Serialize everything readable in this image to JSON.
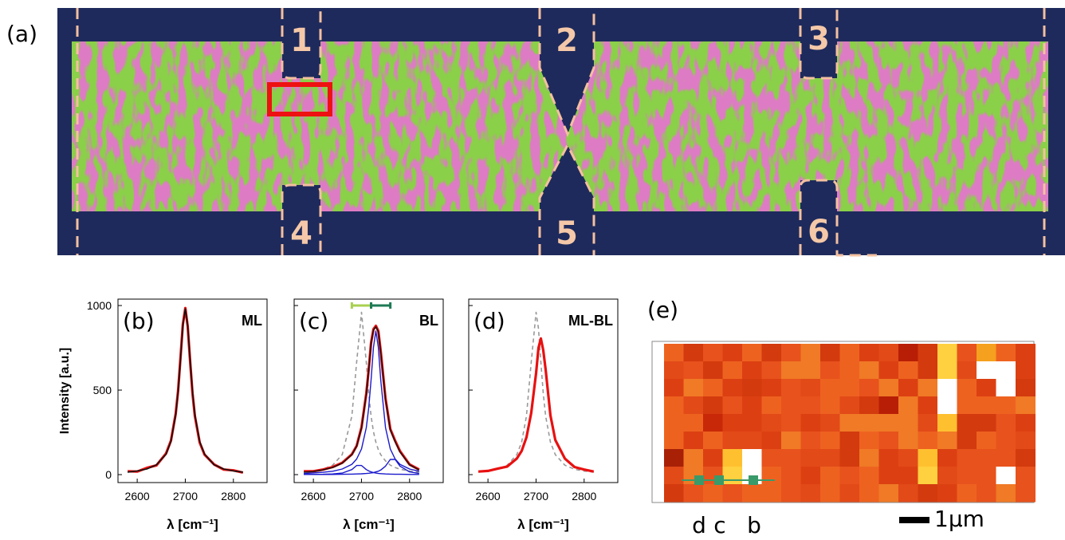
{
  "panels": {
    "a": {
      "label": "(a)",
      "markers": [
        "1",
        "2",
        "3",
        "4",
        "5",
        "6"
      ]
    },
    "e": {
      "label": "(e)",
      "points": [
        "d",
        "c",
        "b"
      ],
      "scale_bar": "1μm"
    }
  },
  "chart_data": [
    {
      "type": "line",
      "label": "(b)",
      "tag": "ML",
      "ylabel": "Intensity [a.u.]",
      "xlabel": "λ [cm⁻¹]",
      "xlim": [
        2560,
        2870
      ],
      "ylim": [
        -47,
        1038
      ],
      "xticks": [
        2600,
        2700,
        2800
      ],
      "yticks": [
        0,
        500,
        1000
      ],
      "x": [
        2580,
        2600,
        2620,
        2640,
        2660,
        2670,
        2680,
        2685,
        2690,
        2695,
        2700,
        2705,
        2710,
        2715,
        2720,
        2730,
        2740,
        2760,
        2780,
        2800,
        2820
      ],
      "series": [
        {
          "color": "#e81010",
          "width": 3.2,
          "values": [
            20,
            18,
            40,
            55,
            125,
            200,
            360,
            495,
            690,
            890,
            985,
            875,
            670,
            480,
            345,
            190,
            118,
            60,
            30,
            25,
            12
          ]
        },
        {
          "color": "#111111",
          "width": 1.6,
          "values": [
            15,
            22,
            33,
            58,
            121,
            196,
            353,
            490,
            679,
            882,
            980,
            882,
            679,
            490,
            353,
            196,
            121,
            58,
            33,
            22,
            15
          ]
        }
      ]
    },
    {
      "type": "line",
      "label": "(c)",
      "tag": "BL",
      "xlabel": "λ [cm⁻¹]",
      "xlim": [
        2560,
        2870
      ],
      "ylim": [
        -47,
        1038
      ],
      "xticks": [
        2600,
        2700,
        2800
      ],
      "yticks": [
        0,
        500,
        1000
      ],
      "x": [
        2580,
        2600,
        2620,
        2640,
        2660,
        2680,
        2690,
        2700,
        2710,
        2715,
        2720,
        2725,
        2730,
        2735,
        2740,
        2750,
        2760,
        2770,
        2780,
        2800,
        2820
      ],
      "series": [
        {
          "color": "#999999",
          "width": 1.6,
          "dashed": true,
          "values": [
            15,
            21,
            32,
            56,
            118,
            346,
            665,
            960,
            665,
            480,
            346,
            254,
            192,
            148,
            118,
            81,
            56,
            42,
            32,
            21,
            15
          ]
        },
        {
          "color": "#e81010",
          "width": 3.2,
          "values": [
            20,
            20,
            30,
            45,
            70,
            120,
            170,
            280,
            480,
            620,
            780,
            860,
            880,
            850,
            730,
            450,
            270,
            200,
            140,
            60,
            30
          ]
        },
        {
          "color": "#1a1acc",
          "width": 1.4,
          "values": [
            7,
            10,
            14,
            20,
            33,
            61,
            92,
            152,
            278,
            393,
            560,
            753,
            850,
            753,
            560,
            278,
            152,
            92,
            61,
            33,
            20
          ]
        },
        {
          "color": "#1a1acc",
          "width": 1.4,
          "values": [
            1,
            1.5,
            2,
            4,
            9,
            30,
            54,
            54,
            30,
            22,
            16,
            12,
            9,
            7,
            6,
            4,
            3,
            2,
            2,
            1,
            1
          ]
        },
        {
          "color": "#1a1acc",
          "width": 1.4,
          "values": [
            1,
            1,
            1,
            1,
            2,
            3,
            4,
            5,
            7,
            8,
            10,
            12,
            16,
            20,
            27,
            50,
            90,
            90,
            50,
            16,
            7
          ]
        },
        {
          "color": "#111111",
          "width": 1.4,
          "values": [
            15,
            18,
            28,
            42,
            68,
            118,
            168,
            275,
            475,
            615,
            775,
            855,
            875,
            845,
            725,
            445,
            265,
            195,
            135,
            58,
            28
          ]
        }
      ],
      "intervals": [
        {
          "x": 2700,
          "error": 20,
          "y": 1000,
          "color": "#a8d050"
        },
        {
          "x": 2740,
          "error": 20,
          "y": 1000,
          "color": "#1e7a55"
        }
      ]
    },
    {
      "type": "line",
      "label": "(d)",
      "tag": "ML-BL",
      "xlabel": "λ [cm⁻¹]",
      "xlim": [
        2560,
        2870
      ],
      "ylim": [
        -47,
        1038
      ],
      "xticks": [
        2600,
        2700,
        2800
      ],
      "yticks": [
        0,
        500,
        1000
      ],
      "x": [
        2580,
        2600,
        2620,
        2640,
        2660,
        2670,
        2680,
        2690,
        2700,
        2705,
        2710,
        2715,
        2720,
        2730,
        2740,
        2760,
        2780,
        2800,
        2820
      ],
      "series": [
        {
          "color": "#999999",
          "width": 1.6,
          "dashed": true,
          "values": [
            15,
            21,
            32,
            56,
            118,
            192,
            346,
            665,
            960,
            864,
            665,
            480,
            346,
            192,
            118,
            56,
            32,
            21,
            15
          ]
        },
        {
          "color": "#e81010",
          "width": 3.2,
          "values": [
            18,
            22,
            35,
            48,
            95,
            140,
            220,
            365,
            600,
            750,
            805,
            735,
            620,
            350,
            205,
            95,
            45,
            30,
            18
          ]
        }
      ]
    }
  ]
}
